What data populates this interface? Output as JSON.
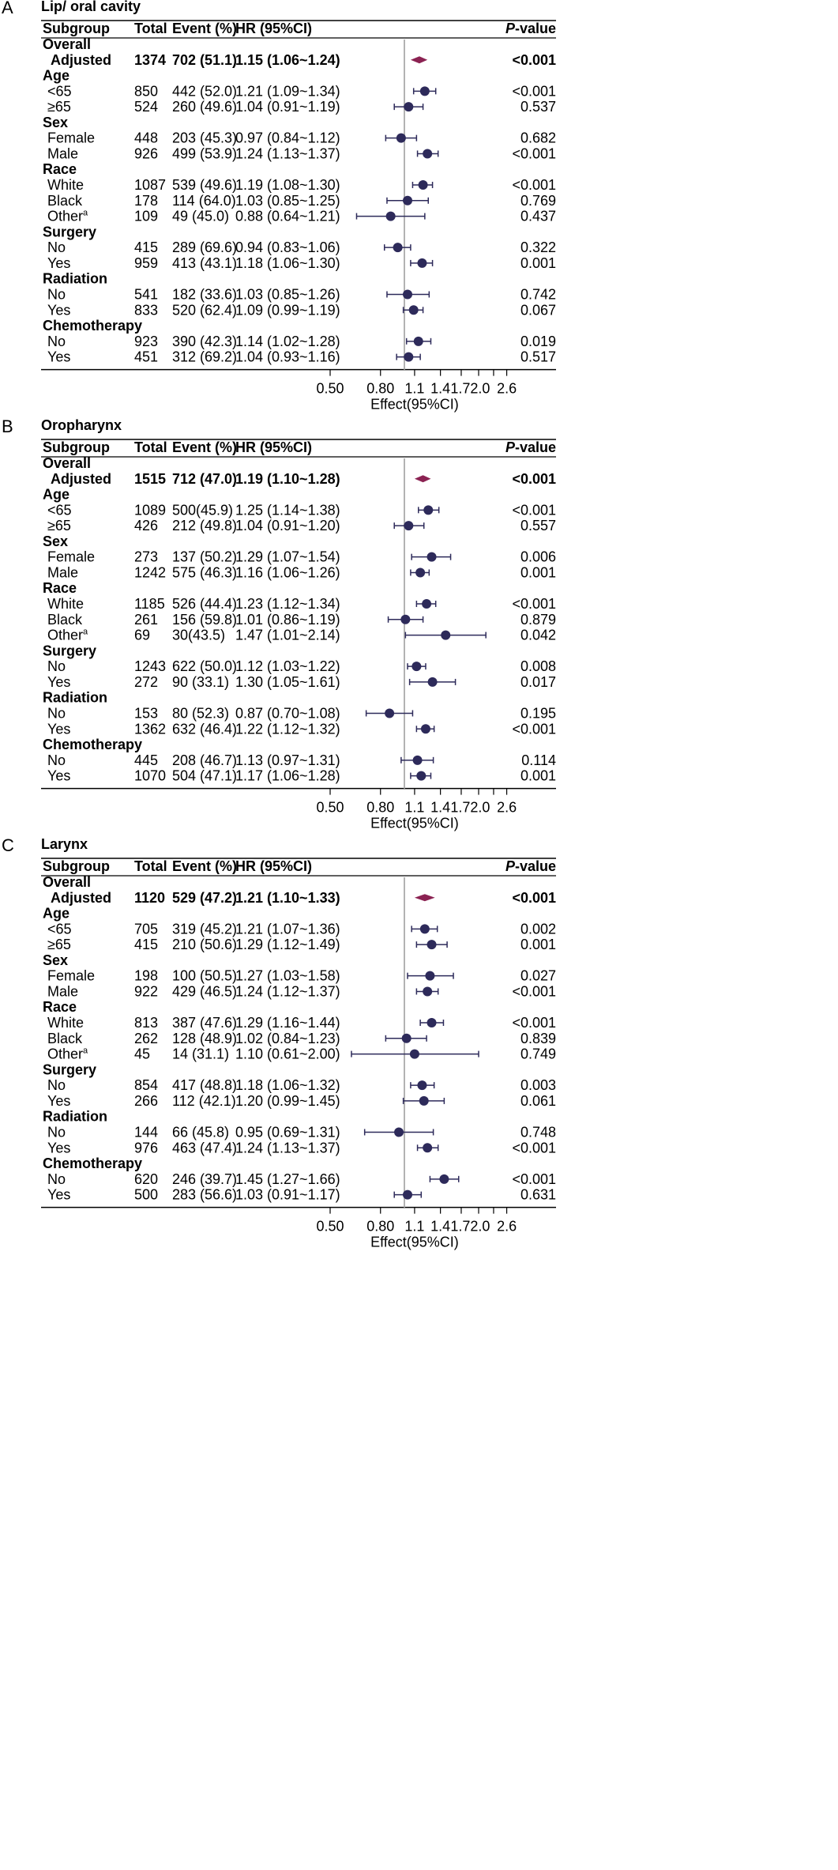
{
  "colors": {
    "point": "#2d2a5a",
    "diamond": "#8b2252",
    "refline": "#b3b3b3",
    "text": "#000000"
  },
  "columns": {
    "subgroup": "Subgroup",
    "total": "Total",
    "event": "Event (%)",
    "hr": "HR (95%CI)",
    "p_prefix": "P",
    "p_suffix": "-value"
  },
  "chart_data": [
    {
      "type": "forest",
      "panel": "A",
      "title": "Lip/ oral cavity",
      "xlabel": "Effect(95%CI)",
      "xscale": "log",
      "ref_value": 1.0,
      "xticks": [
        "0.50",
        "0.80",
        "1.1",
        "1.4",
        "1.72.0",
        "2.6"
      ],
      "xtick_values": [
        0.5,
        0.8,
        1.1,
        1.4,
        1.7,
        2.0,
        2.3,
        2.6
      ],
      "overall": {
        "group": "Overall",
        "label": "Adjusted",
        "total": "1374",
        "event": "702 (51.1)",
        "hr": "1.15 (1.06~1.24)",
        "p": "<0.001",
        "est": 1.15,
        "lo": 1.06,
        "hi": 1.24
      },
      "groups": [
        {
          "name": "Age",
          "rows": [
            {
              "label": "<65",
              "total": "850",
              "event": "442 (52.0)",
              "hr": "1.21 (1.09~1.34)",
              "p": "<0.001",
              "est": 1.21,
              "lo": 1.09,
              "hi": 1.34
            },
            {
              "label": "≥65",
              "total": "524",
              "event": "260 (49.6)",
              "hr": "1.04 (0.91~1.19)",
              "p": "0.537",
              "est": 1.04,
              "lo": 0.91,
              "hi": 1.19
            }
          ]
        },
        {
          "name": "Sex",
          "rows": [
            {
              "label": "Female",
              "total": "448",
              "event": "203 (45.3)",
              "hr": "0.97 (0.84~1.12)",
              "p": "0.682",
              "est": 0.97,
              "lo": 0.84,
              "hi": 1.12
            },
            {
              "label": "Male",
              "total": "926",
              "event": "499 (53.9)",
              "hr": "1.24 (1.13~1.37)",
              "p": "<0.001",
              "est": 1.24,
              "lo": 1.13,
              "hi": 1.37
            }
          ]
        },
        {
          "name": "Race",
          "rows": [
            {
              "label": "White",
              "total": "1087",
              "event": "539 (49.6)",
              "hr": "1.19 (1.08~1.30)",
              "p": "<0.001",
              "est": 1.19,
              "lo": 1.08,
              "hi": 1.3
            },
            {
              "label": "Black",
              "total": "178",
              "event": "114 (64.0)",
              "hr": "1.03 (0.85~1.25)",
              "p": "0.769",
              "est": 1.03,
              "lo": 0.85,
              "hi": 1.25
            },
            {
              "label": "Other",
              "sup": "a",
              "total": "109",
              "event": "49 (45.0)",
              "hr": "0.88 (0.64~1.21)",
              "p": "0.437",
              "est": 0.88,
              "lo": 0.64,
              "hi": 1.21
            }
          ]
        },
        {
          "name": "Surgery",
          "rows": [
            {
              "label": "No",
              "total": "415",
              "event": "289 (69.6)",
              "hr": "0.94 (0.83~1.06)",
              "p": "0.322",
              "est": 0.94,
              "lo": 0.83,
              "hi": 1.06
            },
            {
              "label": "Yes",
              "total": "959",
              "event": "413 (43.1)",
              "hr": "1.18 (1.06~1.30)",
              "p": "0.001",
              "est": 1.18,
              "lo": 1.06,
              "hi": 1.3
            }
          ]
        },
        {
          "name": "Radiation",
          "rows": [
            {
              "label": "No",
              "total": "541",
              "event": "182 (33.6)",
              "hr": "1.03 (0.85~1.26)",
              "p": "0.742",
              "est": 1.03,
              "lo": 0.85,
              "hi": 1.26
            },
            {
              "label": "Yes",
              "total": "833",
              "event": "520 (62.4)",
              "hr": "1.09 (0.99~1.19)",
              "p": "0.067",
              "est": 1.09,
              "lo": 0.99,
              "hi": 1.19
            }
          ]
        },
        {
          "name": "Chemotherapy",
          "rows": [
            {
              "label": "No",
              "total": "923",
              "event": "390 (42.3)",
              "hr": "1.14 (1.02~1.28)",
              "p": "0.019",
              "est": 1.14,
              "lo": 1.02,
              "hi": 1.28
            },
            {
              "label": "Yes",
              "total": "451",
              "event": "312 (69.2)",
              "hr": "1.04 (0.93~1.16)",
              "p": "0.517",
              "est": 1.04,
              "lo": 0.93,
              "hi": 1.16
            }
          ]
        }
      ]
    },
    {
      "type": "forest",
      "panel": "B",
      "title": "Oropharynx",
      "xlabel": "Effect(95%CI)",
      "xscale": "log",
      "ref_value": 1.0,
      "xticks": [
        "0.50",
        "0.80",
        "1.1",
        "1.4",
        "1.72.0",
        "2.6"
      ],
      "xtick_values": [
        0.5,
        0.8,
        1.1,
        1.4,
        1.7,
        2.0,
        2.3,
        2.6
      ],
      "overall": {
        "group": "Overall",
        "label": "Adjusted",
        "total": "1515",
        "event": "712 (47.0)",
        "hr": "1.19 (1.10~1.28)",
        "p": "<0.001",
        "est": 1.19,
        "lo": 1.1,
        "hi": 1.28
      },
      "groups": [
        {
          "name": "Age",
          "rows": [
            {
              "label": "<65",
              "total": "1089",
              "event": "500(45.9)",
              "hr": "1.25 (1.14~1.38)",
              "p": "<0.001",
              "est": 1.25,
              "lo": 1.14,
              "hi": 1.38
            },
            {
              "label": "≥65",
              "total": "426",
              "event": "212 (49.8)",
              "hr": "1.04 (0.91~1.20)",
              "p": "0.557",
              "est": 1.04,
              "lo": 0.91,
              "hi": 1.2
            }
          ]
        },
        {
          "name": "Sex",
          "rows": [
            {
              "label": "Female",
              "total": "273",
              "event": "137 (50.2)",
              "hr": "1.29 (1.07~1.54)",
              "p": "0.006",
              "est": 1.29,
              "lo": 1.07,
              "hi": 1.54
            },
            {
              "label": "Male",
              "total": "1242",
              "event": "575 (46.3)",
              "hr": "1.16 (1.06~1.26)",
              "p": "0.001",
              "est": 1.16,
              "lo": 1.06,
              "hi": 1.26
            }
          ]
        },
        {
          "name": "Race",
          "rows": [
            {
              "label": "White",
              "total": "1185",
              "event": "526 (44.4)",
              "hr": "1.23 (1.12~1.34)",
              "p": "<0.001",
              "est": 1.23,
              "lo": 1.12,
              "hi": 1.34
            },
            {
              "label": "Black",
              "total": "261",
              "event": "156 (59.8)",
              "hr": "1.01 (0.86~1.19)",
              "p": "0.879",
              "est": 1.01,
              "lo": 0.86,
              "hi": 1.19
            },
            {
              "label": "Other",
              "sup": "a",
              "total": "69",
              "event": "30(43.5)",
              "hr": "1.47 (1.01~2.14)",
              "p": "0.042",
              "est": 1.47,
              "lo": 1.01,
              "hi": 2.14
            }
          ]
        },
        {
          "name": "Surgery",
          "rows": [
            {
              "label": "No",
              "total": "1243",
              "event": "622 (50.0)",
              "hr": "1.12 (1.03~1.22)",
              "p": "0.008",
              "est": 1.12,
              "lo": 1.03,
              "hi": 1.22
            },
            {
              "label": "Yes",
              "total": "272",
              "event": "90 (33.1)",
              "hr": "1.30 (1.05~1.61)",
              "p": "0.017",
              "est": 1.3,
              "lo": 1.05,
              "hi": 1.61
            }
          ]
        },
        {
          "name": "Radiation",
          "rows": [
            {
              "label": "No",
              "total": "153",
              "event": "80 (52.3)",
              "hr": "0.87 (0.70~1.08)",
              "p": "0.195",
              "est": 0.87,
              "lo": 0.7,
              "hi": 1.08
            },
            {
              "label": "Yes",
              "total": "1362",
              "event": "632 (46.4)",
              "hr": "1.22 (1.12~1.32)",
              "p": "<0.001",
              "est": 1.22,
              "lo": 1.12,
              "hi": 1.32
            }
          ]
        },
        {
          "name": "Chemotherapy",
          "rows": [
            {
              "label": "No",
              "total": "445",
              "event": "208 (46.7)",
              "hr": "1.13 (0.97~1.31)",
              "p": "0.114",
              "est": 1.13,
              "lo": 0.97,
              "hi": 1.31
            },
            {
              "label": "Yes",
              "total": "1070",
              "event": "504 (47.1)",
              "hr": "1.17 (1.06~1.28)",
              "p": "0.001",
              "est": 1.17,
              "lo": 1.06,
              "hi": 1.28
            }
          ]
        }
      ]
    },
    {
      "type": "forest",
      "panel": "C",
      "title": "Larynx",
      "xlabel": "Effect(95%CI)",
      "xscale": "log",
      "ref_value": 1.0,
      "xticks": [
        "0.50",
        "0.80",
        "1.1",
        "1.4",
        "1.72.0",
        "2.6"
      ],
      "xtick_values": [
        0.5,
        0.8,
        1.1,
        1.4,
        1.7,
        2.0,
        2.3,
        2.6
      ],
      "overall": {
        "group": "Overall",
        "label": "Adjusted",
        "total": "1120",
        "event": "529 (47.2)",
        "hr": "1.21 (1.10~1.33)",
        "p": "<0.001",
        "est": 1.21,
        "lo": 1.1,
        "hi": 1.33
      },
      "groups": [
        {
          "name": "Age",
          "rows": [
            {
              "label": "<65",
              "total": "705",
              "event": "319 (45.2)",
              "hr": "1.21 (1.07~1.36)",
              "p": "0.002",
              "est": 1.21,
              "lo": 1.07,
              "hi": 1.36
            },
            {
              "label": "≥65",
              "total": "415",
              "event": "210 (50.6)",
              "hr": "1.29 (1.12~1.49)",
              "p": "0.001",
              "est": 1.29,
              "lo": 1.12,
              "hi": 1.49
            }
          ]
        },
        {
          "name": "Sex",
          "rows": [
            {
              "label": "Female",
              "total": "198",
              "event": "100 (50.5)",
              "hr": "1.27 (1.03~1.58)",
              "p": "0.027",
              "est": 1.27,
              "lo": 1.03,
              "hi": 1.58
            },
            {
              "label": "Male",
              "total": "922",
              "event": "429 (46.5)",
              "hr": "1.24 (1.12~1.37)",
              "p": "<0.001",
              "est": 1.24,
              "lo": 1.12,
              "hi": 1.37
            }
          ]
        },
        {
          "name": "Race",
          "rows": [
            {
              "label": "White",
              "total": "813",
              "event": "387 (47.6)",
              "hr": "1.29 (1.16~1.44)",
              "p": "<0.001",
              "est": 1.29,
              "lo": 1.16,
              "hi": 1.44
            },
            {
              "label": "Black",
              "total": "262",
              "event": "128 (48.9)",
              "hr": "1.02 (0.84~1.23)",
              "p": "0.839",
              "est": 1.02,
              "lo": 0.84,
              "hi": 1.23
            },
            {
              "label": "Other",
              "sup": "a",
              "total": "45",
              "event": "14 (31.1)",
              "hr": "1.10 (0.61~2.00)",
              "p": "0.749",
              "est": 1.1,
              "lo": 0.61,
              "hi": 2.0
            }
          ]
        },
        {
          "name": "Surgery",
          "rows": [
            {
              "label": "No",
              "total": "854",
              "event": "417 (48.8)",
              "hr": "1.18 (1.06~1.32)",
              "p": "0.003",
              "est": 1.18,
              "lo": 1.06,
              "hi": 1.32
            },
            {
              "label": "Yes",
              "total": "266",
              "event": "112 (42.1)",
              "hr": "1.20 (0.99~1.45)",
              "p": "0.061",
              "est": 1.2,
              "lo": 0.99,
              "hi": 1.45
            }
          ]
        },
        {
          "name": "Radiation",
          "rows": [
            {
              "label": "No",
              "total": "144",
              "event": "66 (45.8)",
              "hr": "0.95 (0.69~1.31)",
              "p": "0.748",
              "est": 0.95,
              "lo": 0.69,
              "hi": 1.31
            },
            {
              "label": "Yes",
              "total": "976",
              "event": "463 (47.4)",
              "hr": "1.24 (1.13~1.37)",
              "p": "<0.001",
              "est": 1.24,
              "lo": 1.13,
              "hi": 1.37
            }
          ]
        },
        {
          "name": "Chemotherapy",
          "rows": [
            {
              "label": "No",
              "total": "620",
              "event": "246 (39.7)",
              "hr": "1.45 (1.27~1.66)",
              "p": "<0.001",
              "est": 1.45,
              "lo": 1.27,
              "hi": 1.66
            },
            {
              "label": "Yes",
              "total": "500",
              "event": "283 (56.6)",
              "hr": "1.03 (0.91~1.17)",
              "p": "0.631",
              "est": 1.03,
              "lo": 0.91,
              "hi": 1.17
            }
          ]
        }
      ]
    }
  ]
}
